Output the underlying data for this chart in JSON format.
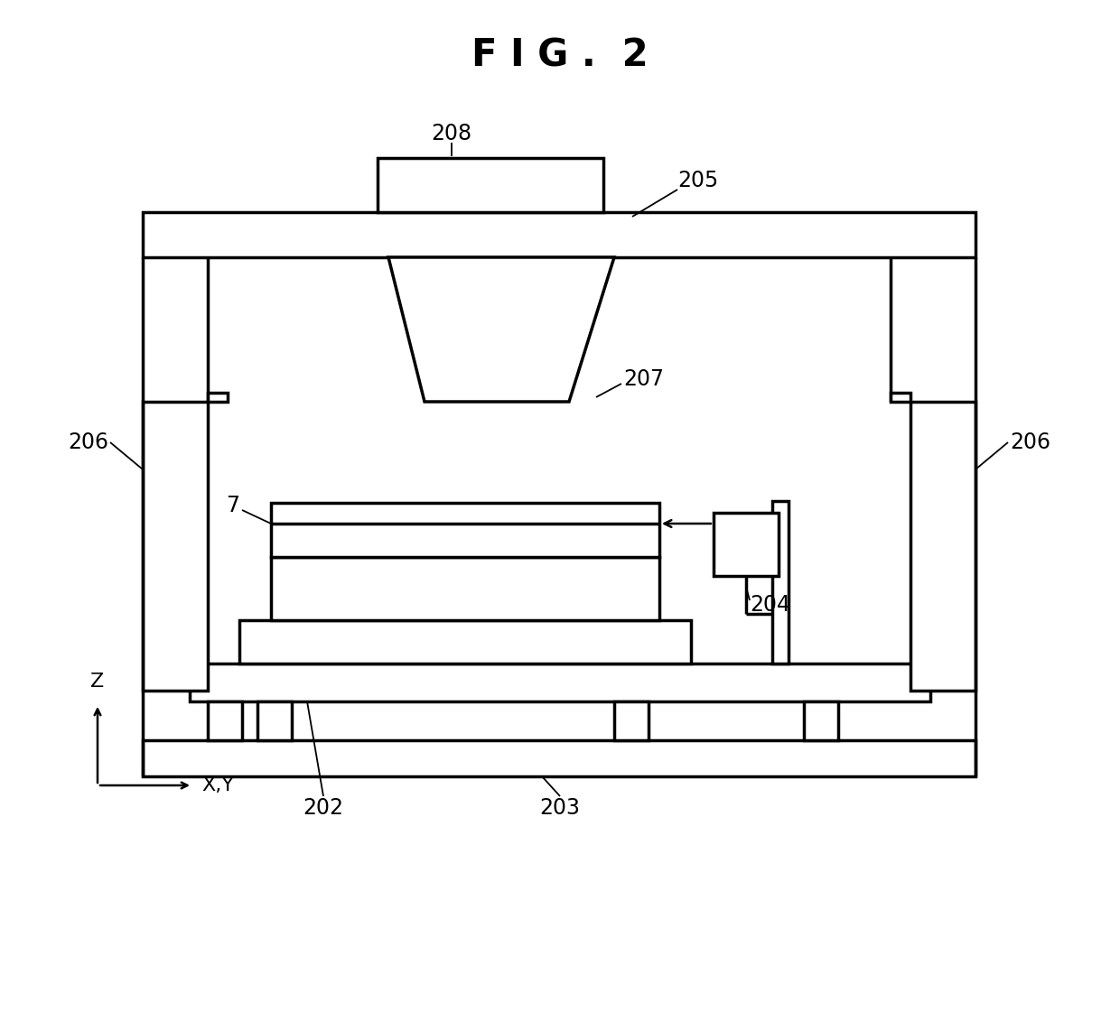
{
  "title": "F I G .  2",
  "title_fontsize": 30,
  "title_fontweight": "bold",
  "bg_color": "#ffffff",
  "line_color": "#000000",
  "lw": 2.5,
  "fig_width": 12.4,
  "fig_height": 11.31
}
